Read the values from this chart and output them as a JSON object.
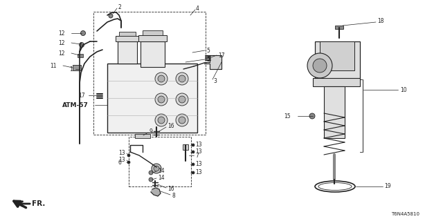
{
  "bg_color": "#ffffff",
  "line_color": "#222222",
  "diagram_id": "T6N4A5810",
  "atm_label": "ATM-57",
  "fr_label": "FR.",
  "fs_label": 5.5,
  "fs_small": 4.8,
  "lw_main": 0.7,
  "lw_thick": 1.2,
  "lw_thin": 0.5
}
